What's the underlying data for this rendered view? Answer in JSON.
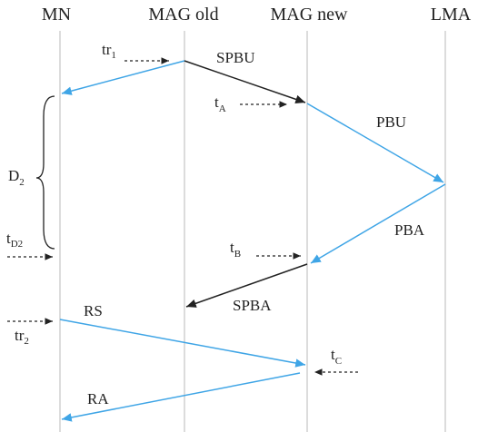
{
  "entities": [
    "MN",
    "MAG old",
    "MAG new",
    "LMA"
  ],
  "messages": {
    "spbu": "SPBU",
    "pbu": "PBU",
    "pba": "PBA",
    "spba": "SPBA",
    "rs": "RS",
    "ra": "RA"
  },
  "times": {
    "tr1": {
      "main": "tr",
      "sub": "1"
    },
    "tA": {
      "main": "t",
      "sub": "A"
    },
    "tB": {
      "main": "t",
      "sub": "B"
    },
    "tC": {
      "main": "t",
      "sub": "C"
    },
    "tD2": {
      "main": "t",
      "sub": "D2"
    },
    "tr2": {
      "main": "tr",
      "sub": "2"
    },
    "D2": {
      "main": "D",
      "sub": "2"
    }
  },
  "colors": {
    "lifeline": "#d0d0d0",
    "blue": "#3fa5e6",
    "black": "#222222"
  }
}
